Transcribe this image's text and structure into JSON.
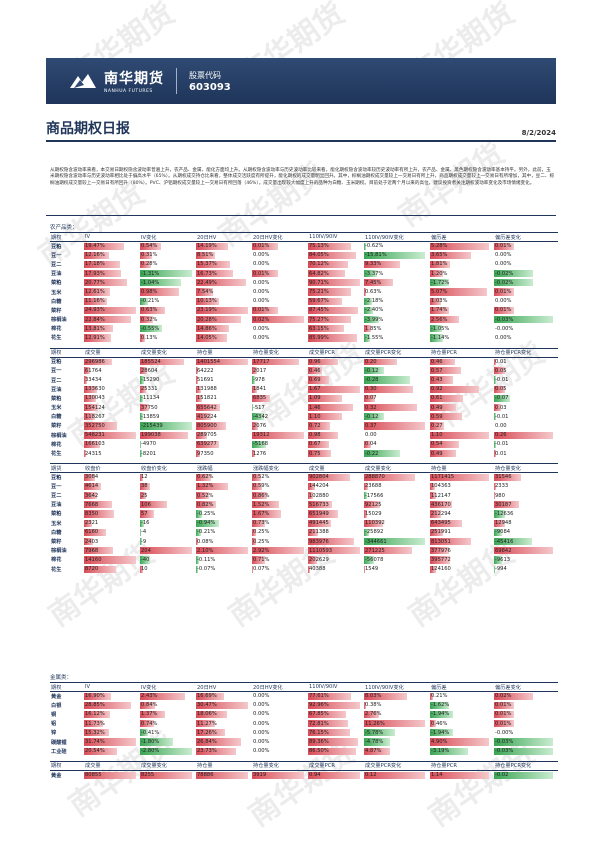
{
  "header": {
    "logo_name": "南华期货",
    "logo_sub": "NANHUA FUTURES",
    "code_label": "股票代码",
    "code_value": "603093"
  },
  "report": {
    "title": "商品期权日报",
    "date": "8/2/2024"
  },
  "summary": "从期权隐含波动率来看，本交易日期权隐含波动率普遍上升，农产品、金属、能化方面均上升。从期权隐含波动率与历史波动率比较来看，能化期权隐含波动率较历史波动率有所上升，农产品、金属、黑色期权隐含波动率基本持平。另外，此前，玉米期权隐含波动率与历史波动率相比处于偏高水平（65%）。从期权成交持仓比来看，整体成交活跃度有所提升，能化期权的成交量明显回升。其中，棕榈油期权成交量较上一交易日有所上升，商品期权成交量较上一交易日有所增加，其中，豆二、棕榈油期权成交量较上一交易日有所回升（80%）。PVC、沪铝期权成交量较上一交易日有所回落（46%）。成交量出现较大幅度上升的品种为白糖、玉米期权。目前处于近两个月以来的高位，建议投资者关注期权波动率变化及市场情绪变化。",
  "sections": {
    "agri": "农产品类：",
    "metal": "金属类："
  },
  "heads": {
    "vol": [
      "期权",
      "IV",
      "IV变化",
      "20日HV",
      "20日HV变化",
      "110IV/90IV",
      "110IV/90IV变化",
      "偏历差",
      "偏历差变化"
    ],
    "oi": [
      "期权",
      "成交量",
      "成交量变化",
      "持仓量",
      "持仓量变化",
      "成交量PCR",
      "成交量PCR变化",
      "持仓量PCR",
      "持仓量PCR变化"
    ],
    "fut": [
      "期货",
      "收盘价",
      "收盘价变化",
      "涨跌幅",
      "涨跌幅变化",
      "成交量",
      "成交量变化",
      "持仓量",
      "持仓量变化"
    ]
  },
  "agri_vol": [
    [
      "豆粕",
      "19.47%",
      "0.54%",
      "14.19%",
      "0.01%",
      "75.13%",
      "-0.62%",
      "5.28%",
      "0.01%"
    ],
    [
      "豆一",
      "12.16%",
      "0.31%",
      "8.51%",
      "0.00%",
      "84.05%",
      "-15.81%",
      "3.65%",
      "0.00%"
    ],
    [
      "豆二",
      "17.18%",
      "0.28%",
      "15.37%",
      "0.00%",
      "70.12%",
      "9.33%",
      "1.81%",
      "0.00%"
    ],
    [
      "豆油",
      "17.93%",
      "-1.31%",
      "16.73%",
      "0.01%",
      "64.82%",
      "-3.37%",
      "1.20%",
      "-0.02%"
    ],
    [
      "菜粕",
      "20.77%",
      "-1.04%",
      "22.49%",
      "0.00%",
      "90.71%",
      "7.45%",
      "-1.72%",
      "-0.02%"
    ],
    [
      "玉米",
      "12.61%",
      "0.98%",
      "7.54%",
      "0.00%",
      "75.21%",
      "0.63%",
      "5.07%",
      "0.01%"
    ],
    [
      "白糖",
      "11.16%",
      "-0.21%",
      "10.13%",
      "0.00%",
      "59.67%",
      "-2.18%",
      "1.03%",
      "0.00%"
    ],
    [
      "菜籽",
      "24.93%",
      "0.63%",
      "23.19%",
      "0.01%",
      "87.45%",
      "-2.40%",
      "1.74%",
      "0.01%"
    ],
    [
      "棕榈油",
      "22.84%",
      "0.32%",
      "20.28%",
      "0.02%",
      "75.27%",
      "-3.99%",
      "2.56%",
      "-0.03%"
    ],
    [
      "棉花",
      "13.81%",
      "-0.55%",
      "14.86%",
      "0.00%",
      "63.15%",
      "1.85%",
      "-1.05%",
      "-0.00%"
    ],
    [
      "花生",
      "12.91%",
      "0.13%",
      "14.05%",
      "0.00%",
      "85.99%",
      "-1.55%",
      "-1.14%",
      "0.00%"
    ]
  ],
  "agri_oi": [
    [
      "豆粕",
      "296986",
      "185524",
      "1401554",
      "17717",
      "0.96",
      "0.20",
      "0.46",
      "0.01"
    ],
    [
      "豆一",
      "61764",
      "28604",
      "64222",
      "2017",
      "0.46",
      "-0.12",
      "0.57",
      "0.05"
    ],
    [
      "豆二",
      "33434",
      "-15290",
      "51691",
      "-978",
      "0.69",
      "-0.28",
      "0.43",
      "-0.01"
    ],
    [
      "豆油",
      "133630",
      "25331",
      "131988",
      "1841",
      "1.67",
      "0.30",
      "0.92",
      "0.05"
    ],
    [
      "菜粕",
      "130043",
      "-11134",
      "151821",
      "6835",
      "1.09",
      "0.07",
      "0.61",
      "-0.07"
    ],
    [
      "玉米",
      "154124",
      "37750",
      "655642",
      "-517",
      "1.46",
      "0.32",
      "0.49",
      "0.03"
    ],
    [
      "白糖",
      "118267",
      "-13859",
      "419224",
      "-4342",
      "1.10",
      "-0.12",
      "0.59",
      "-0.01"
    ],
    [
      "菜籽",
      "352750",
      "-215439",
      "805900",
      "2076",
      "0.72",
      "0.37",
      "0.27",
      "0.00"
    ],
    [
      "棕榈油",
      "548231",
      "199038",
      "289705",
      "19312",
      "0.98",
      "0.00",
      "1.10",
      "0.26"
    ],
    [
      "棉花",
      "166103",
      "-4970",
      "639277",
      "-5168",
      "0.67",
      "0.04",
      "0.54",
      "-0.01"
    ],
    [
      "花生",
      "24315",
      "-8201",
      "97350",
      "1276",
      "0.75",
      "-0.22",
      "0.49",
      "0.01"
    ]
  ],
  "agri_fut": [
    [
      "豆粕",
      "3084",
      "12",
      "0.62%",
      "0.52%",
      "902804",
      "288870",
      "1171415",
      "31546"
    ],
    [
      "豆一",
      "4614",
      "38",
      "1.32%",
      "0.59%",
      "144204",
      "23688",
      "104363",
      "2333"
    ],
    [
      "豆二",
      "3642",
      "25",
      "0.52%",
      "0.86%",
      "102880",
      "-17566",
      "112147",
      "980"
    ],
    [
      "豆油",
      "7668",
      "106",
      "0.82%",
      "1.52%",
      "516733",
      "92125",
      "436170",
      "30187"
    ],
    [
      "菜粕",
      "8350",
      "57",
      "-0.25%",
      "1.67%",
      "651949",
      "15029",
      "212294",
      "-12636"
    ],
    [
      "玉米",
      "2321",
      "-16",
      "-0.94%",
      "0.73%",
      "491445",
      "110392",
      "643495",
      "12948"
    ],
    [
      "白糖",
      "6160",
      "-4",
      "-0.21%",
      "0.25%",
      "211388",
      "-25892",
      "251991",
      "-9084"
    ],
    [
      "菜籽",
      "2403",
      "-9",
      "0.08%",
      "0.25%",
      "983976",
      "-344661",
      "813051",
      "-45416"
    ],
    [
      "棕榈油",
      "7968",
      "204",
      "2.10%",
      "2.92%",
      "1110593",
      "271225",
      "377976",
      "69842"
    ],
    [
      "棉花",
      "14160",
      "-40",
      "-0.11%",
      "0.71%",
      "202629",
      "-56078",
      "395772",
      "-9613"
    ],
    [
      "花生",
      "8720",
      "10",
      "-0.07%",
      "0.07%",
      "40388",
      "1549",
      "124160",
      "-994"
    ]
  ],
  "metal_vol": [
    [
      "黄金",
      "16.90%",
      "2.43%",
      "16.69%",
      "0.00%",
      "77.61%",
      "8.03%",
      "0.21%",
      "0.02%"
    ],
    [
      "白银",
      "28.85%",
      "0.84%",
      "30.47%",
      "0.00%",
      "92.96%",
      "0.38%",
      "-1.62%",
      "0.01%"
    ],
    [
      "铜",
      "16.12%",
      "1.37%",
      "18.06%",
      "0.00%",
      "67.85%",
      "2.76%",
      "-1.94%",
      "0.01%"
    ],
    [
      "铝",
      "11.73%",
      "0.74%",
      "11.27%",
      "0.00%",
      "72.81%",
      "11.26%",
      "0.46%",
      "0.01%"
    ],
    [
      "锌",
      "15.32%",
      "-0.41%",
      "17.26%",
      "0.00%",
      "76.15%",
      "-5.78%",
      "-1.94%",
      "-0.00%"
    ],
    [
      "碳酸锂",
      "31.74%",
      "-1.80%",
      "26.84%",
      "0.00%",
      "89.36%",
      "-4.78%",
      "4.90%",
      "-0.03%"
    ],
    [
      "工业硅",
      "20.54%",
      "-2.80%",
      "23.73%",
      "0.00%",
      "86.50%",
      "4.87%",
      "-3.19%",
      "-0.03%"
    ]
  ],
  "metal_oi_head": [
    "期权",
    "成交量",
    "成交量变化",
    "持仓量",
    "持仓量变化",
    "成交量PCR",
    "成交量PCR变化",
    "持仓量PCR",
    "持仓量PCR变化"
  ],
  "metal_oi": [
    [
      "黄金",
      "80855",
      "8255",
      "78886",
      "3919",
      "0.94",
      "0.12",
      "1.14",
      "-0.02"
    ]
  ],
  "watermark": "南华期货",
  "colors": {
    "navy": "#1f355a",
    "pos": "#d94b56",
    "neg": "#3aa553",
    "band": "#cfe0ee"
  }
}
